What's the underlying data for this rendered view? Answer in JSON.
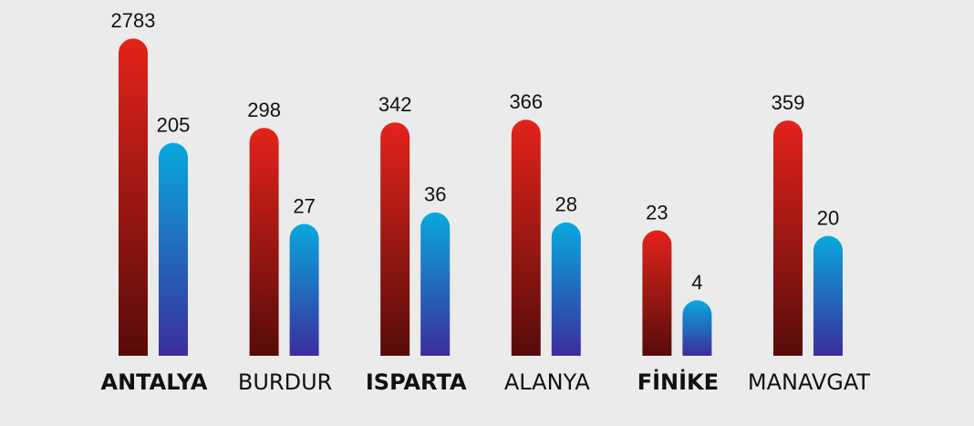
{
  "chart_data": {
    "type": "bar",
    "categories": [
      "ANTALYA",
      "BURDUR",
      "ISPARTA",
      "ALANYA",
      "FİNİKE",
      "MANAVGAT"
    ],
    "highlighted": [
      true,
      false,
      true,
      false,
      true,
      false
    ],
    "series": [
      {
        "colors": [
          "#e3231b",
          "#560c0a"
        ],
        "values": [
          2783,
          298,
          342,
          366,
          23,
          359
        ]
      },
      {
        "colors": [
          "#08a8de",
          "#3b2d9e"
        ],
        "values": [
          205,
          27,
          36,
          28,
          4,
          20
        ]
      }
    ],
    "log_scale": true,
    "ylim": [
      1,
      3000
    ]
  }
}
